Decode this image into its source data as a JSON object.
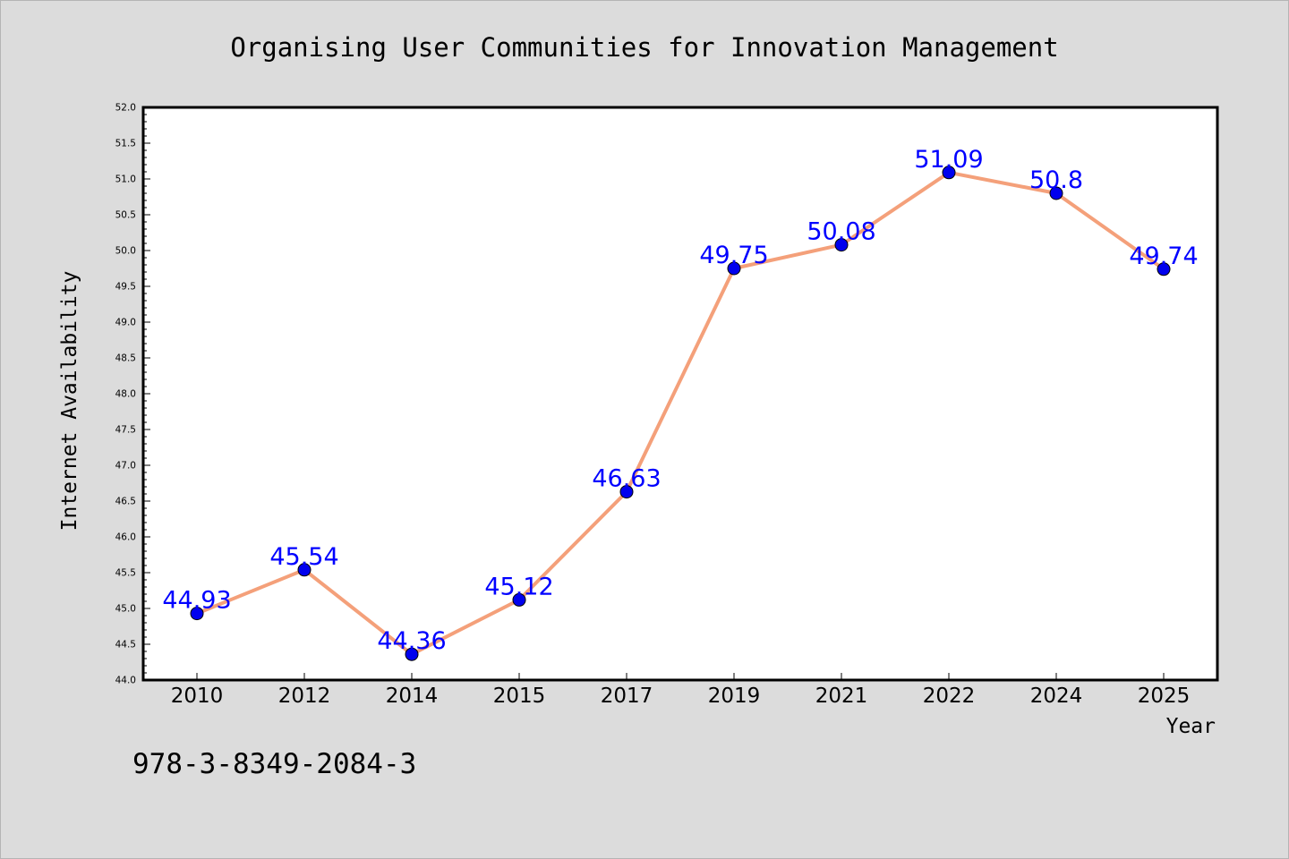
{
  "chart_data": {
    "type": "line",
    "title": "Organising User Communities for Innovation Management",
    "xlabel": "Year",
    "ylabel": "Internet Availability",
    "categories": [
      "2010",
      "2012",
      "2014",
      "2015",
      "2017",
      "2019",
      "2021",
      "2022",
      "2024",
      "2025"
    ],
    "series": [
      {
        "values": [
          44.93,
          45.54,
          44.36,
          45.12,
          46.63,
          49.75,
          50.08,
          51.09,
          50.8,
          49.74
        ],
        "labels": [
          "44.93",
          "45.54",
          "44.36",
          "45.12",
          "46.63",
          "49.75",
          "50.08",
          "51.09",
          "50.8",
          "49.74"
        ]
      }
    ],
    "ylim": [
      44.0,
      52.0
    ],
    "yticks": [
      "44.0",
      "44.5",
      "45.0",
      "45.5",
      "46.0",
      "46.5",
      "47.0",
      "47.5",
      "48.0",
      "48.5",
      "49.0",
      "49.5",
      "50.0",
      "50.5",
      "51.0",
      "51.5",
      "52.0"
    ],
    "grid": false,
    "legend": "none",
    "colors": {
      "line": "#f4a07a",
      "marker": "#0000ee",
      "data_label": "#0000ff",
      "plot_bg": "#ffffff",
      "page_bg": "#dcdcdc"
    }
  },
  "footer_text": "978-3-8349-2084-3"
}
